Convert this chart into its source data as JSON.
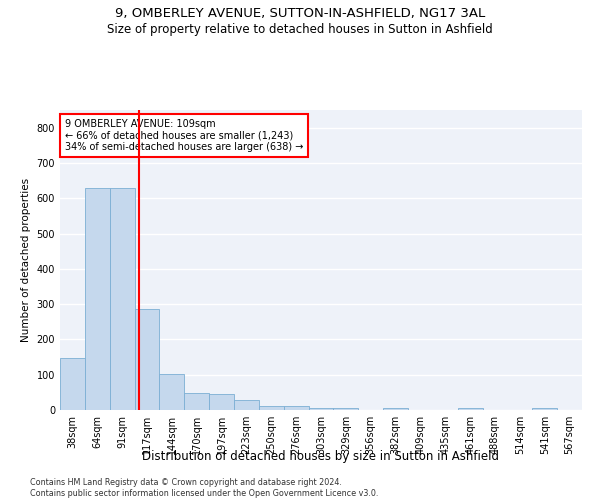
{
  "title": "9, OMBERLEY AVENUE, SUTTON-IN-ASHFIELD, NG17 3AL",
  "subtitle": "Size of property relative to detached houses in Sutton in Ashfield",
  "xlabel": "Distribution of detached houses by size in Sutton in Ashfield",
  "ylabel": "Number of detached properties",
  "footnote": "Contains HM Land Registry data © Crown copyright and database right 2024.\nContains public sector information licensed under the Open Government Licence v3.0.",
  "bar_labels": [
    "38sqm",
    "64sqm",
    "91sqm",
    "117sqm",
    "144sqm",
    "170sqm",
    "197sqm",
    "223sqm",
    "250sqm",
    "276sqm",
    "303sqm",
    "329sqm",
    "356sqm",
    "382sqm",
    "409sqm",
    "435sqm",
    "461sqm",
    "488sqm",
    "514sqm",
    "541sqm",
    "567sqm"
  ],
  "bar_values": [
    148,
    630,
    630,
    285,
    103,
    47,
    44,
    28,
    11,
    11,
    7,
    5,
    0,
    7,
    0,
    0,
    7,
    0,
    0,
    7,
    0
  ],
  "bar_color": "#c5d8ed",
  "bar_edge_color": "#7bafd4",
  "annotation_text": "9 OMBERLEY AVENUE: 109sqm\n← 66% of detached houses are smaller (1,243)\n34% of semi-detached houses are larger (638) →",
  "annotation_box_color": "white",
  "annotation_box_edge_color": "red",
  "vline_color": "red",
  "vline_x_index": 2.69,
  "ylim": [
    0,
    850
  ],
  "yticks": [
    0,
    100,
    200,
    300,
    400,
    500,
    600,
    700,
    800
  ],
  "background_color": "#eef2f9",
  "grid_color": "white",
  "title_fontsize": 9.5,
  "subtitle_fontsize": 8.5,
  "xlabel_fontsize": 8.5,
  "ylabel_fontsize": 7.5,
  "tick_fontsize": 7,
  "footnote_fontsize": 5.8
}
